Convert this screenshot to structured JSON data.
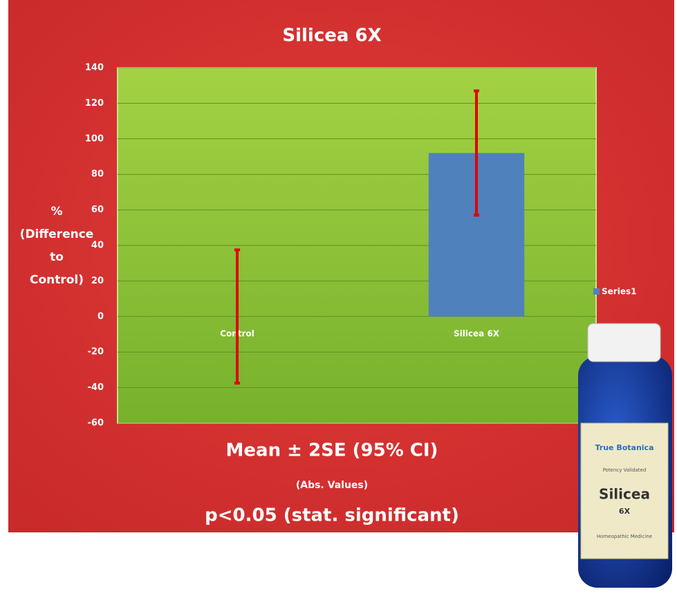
{
  "chart_data": {
    "type": "bar",
    "title": "Silicea 6X",
    "ylabel": [
      "%",
      "(Difference",
      "to",
      "Control)"
    ],
    "categories": [
      "Control",
      "Silicea 6X"
    ],
    "series": [
      {
        "name": "Series1",
        "color": "#4f81bd",
        "values": [
          0,
          92
        ],
        "errors": [
          37.5,
          35
        ],
        "error_color": "#e00000"
      }
    ],
    "ylim": [
      -60,
      140
    ],
    "yticks": [
      -60,
      -40,
      -20,
      0,
      20,
      40,
      60,
      80,
      100,
      120,
      140
    ],
    "grid": true,
    "legend": "right",
    "annotations": [
      "Mean ± 2SE  (95% CI)",
      "(Abs. Values)",
      "p<0.05 (stat. significant)"
    ]
  },
  "bottle_label": {
    "brand": "True Botanica",
    "tagline": "Potency Validated",
    "name": "Silicea",
    "potency": "6X",
    "footer": "Homeopathic Medicine"
  }
}
